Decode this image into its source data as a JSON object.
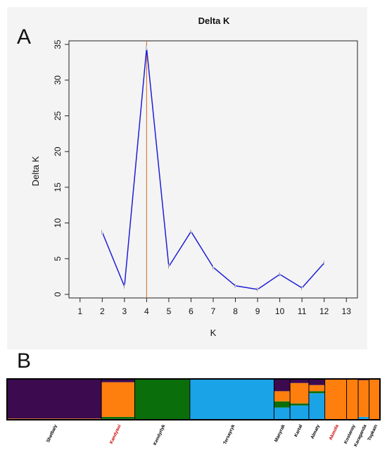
{
  "panel_labels": {
    "a": "A",
    "b": "B"
  },
  "chart_data": [
    {
      "type": "line",
      "title": "Delta K",
      "xlabel": "K",
      "ylabel": "Delta K",
      "x": [
        2,
        3,
        4,
        5,
        6,
        7,
        8,
        9,
        10,
        11,
        12
      ],
      "series": [
        {
          "values": [
            8.7,
            1.1,
            34.5,
            3.9,
            8.8,
            3.8,
            1.2,
            0.7,
            2.8,
            0.9,
            4.4
          ]
        }
      ],
      "xticks": [
        "1",
        "2",
        "3",
        "4",
        "5",
        "6",
        "7",
        "8",
        "9",
        "10",
        "11",
        "12",
        "13"
      ],
      "yticks": [
        "0",
        "5",
        "10",
        "15",
        "20",
        "25",
        "30",
        "35"
      ],
      "xlim": [
        0.5,
        13.5
      ],
      "ylim": [
        -0.5,
        35.5
      ],
      "vline_x": 4,
      "colors": {
        "line": "#1f1fd6",
        "vline": "#d2691e",
        "background": "#f4f4f4"
      }
    },
    {
      "type": "bar",
      "stacked": true,
      "description_of_components": "STRUCTURE ancestry proportions (K=4) per population",
      "components": [
        "purple",
        "orange",
        "green",
        "blue"
      ],
      "colors": {
        "purple": "#3c0a4f",
        "orange": "#ff7f0e",
        "green": "#0a6e0a",
        "blue": "#1ba3e8",
        "lime": "#8fbf2a",
        "violet": "#8a5cd8",
        "border": "#000000"
      },
      "categories": [
        "Shetbaiy",
        "Kandyaui",
        "Kendyrlyk",
        "Tersayryk",
        "Manyrak",
        "Kartal",
        "Almaty",
        "Akmola",
        "Kostanay",
        "Karaganda",
        "Topkain"
      ],
      "label_colors": [
        "#000000",
        "#cc0000",
        "#000000",
        "#000000",
        "#000000",
        "#000000",
        "#000000",
        "#cc0000",
        "#000000",
        "#000000",
        "#000000"
      ],
      "proportions": [
        {
          "name": "Shetbaiy",
          "purple": 0.97,
          "orange": 0.02,
          "green": 0.005,
          "blue": 0.005
        },
        {
          "name": "Kandyaui",
          "purple": 0.08,
          "orange": 0.85,
          "green": 0.05,
          "blue": 0.02
        },
        {
          "name": "Kendyrlyk",
          "purple": 0.0,
          "orange": 0.0,
          "green": 1.0,
          "blue": 0.0
        },
        {
          "name": "Tersayryk",
          "purple": 0.0,
          "orange": 0.0,
          "green": 0.0,
          "blue": 1.0
        },
        {
          "name": "Manyrak",
          "purple": 0.3,
          "orange": 0.25,
          "green": 0.15,
          "blue": 0.3
        },
        {
          "name": "Kartal",
          "purple": 0.1,
          "orange": 0.5,
          "green": 0.05,
          "blue": 0.35
        },
        {
          "name": "Almaty",
          "purple": 0.15,
          "orange": 0.15,
          "green": 0.05,
          "blue": 0.65
        },
        {
          "name": "Akmola",
          "purple": 0.0,
          "orange": 1.0,
          "green": 0.0,
          "blue": 0.0
        },
        {
          "name": "Kostanay",
          "purple": 0.0,
          "orange": 1.0,
          "green": 0.0,
          "blue": 0.0
        },
        {
          "name": "Karaganda",
          "purple": 0.03,
          "orange": 0.9,
          "green": 0.0,
          "blue": 0.07
        },
        {
          "name": "Topkain",
          "purple": 0.0,
          "orange": 1.0,
          "green": 0.0,
          "blue": 0.0
        }
      ]
    }
  ]
}
